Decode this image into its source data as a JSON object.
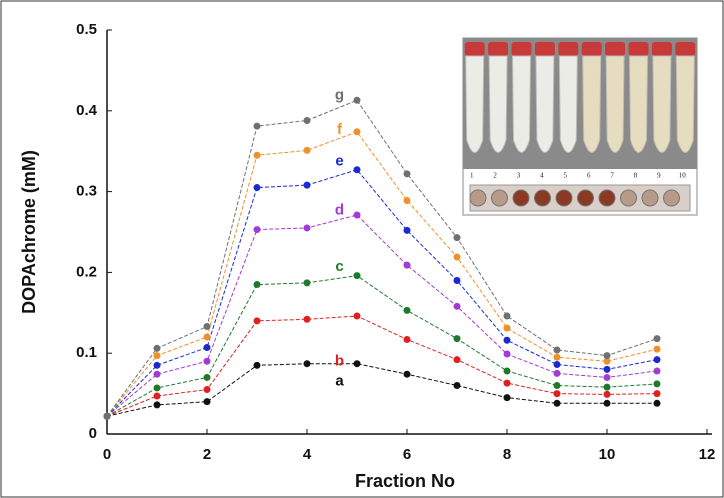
{
  "chart_data": {
    "type": "line",
    "x_label": "Fraction No",
    "y_label": "DOPAchrome (mM)",
    "x": [
      0,
      1,
      2,
      3,
      4,
      5,
      6,
      7,
      8,
      9,
      10,
      11
    ],
    "series": [
      {
        "name": "a",
        "color": "#111111",
        "values": [
          0.022,
          0.036,
          0.04,
          0.085,
          0.087,
          0.087,
          0.074,
          0.06,
          0.045,
          0.038,
          0.038,
          0.038
        ]
      },
      {
        "name": "b",
        "color": "#e02020",
        "values": [
          0.022,
          0.047,
          0.055,
          0.14,
          0.142,
          0.146,
          0.117,
          0.092,
          0.063,
          0.05,
          0.049,
          0.05
        ]
      },
      {
        "name": "c",
        "color": "#1e7a2a",
        "values": [
          0.022,
          0.057,
          0.07,
          0.185,
          0.187,
          0.196,
          0.153,
          0.118,
          0.078,
          0.06,
          0.058,
          0.062
        ]
      },
      {
        "name": "d",
        "color": "#a23ad6",
        "values": [
          0.022,
          0.074,
          0.09,
          0.253,
          0.255,
          0.271,
          0.209,
          0.158,
          0.099,
          0.075,
          0.07,
          0.078
        ]
      },
      {
        "name": "e",
        "color": "#1a2ad0",
        "values": [
          0.022,
          0.085,
          0.107,
          0.305,
          0.308,
          0.327,
          0.252,
          0.19,
          0.116,
          0.086,
          0.08,
          0.092
        ]
      },
      {
        "name": "f",
        "color": "#f0902a",
        "values": [
          0.022,
          0.097,
          0.12,
          0.345,
          0.351,
          0.374,
          0.289,
          0.219,
          0.131,
          0.095,
          0.09,
          0.105
        ]
      },
      {
        "name": "g",
        "color": "#707070",
        "values": [
          0.022,
          0.106,
          0.133,
          0.381,
          0.388,
          0.413,
          0.322,
          0.243,
          0.146,
          0.104,
          0.097,
          0.118
        ]
      }
    ],
    "xlim": [
      0,
      12
    ],
    "xticks": [
      0,
      2,
      4,
      6,
      8,
      10,
      12
    ],
    "ylim": [
      0,
      0.5
    ],
    "yticks": [
      0,
      0.1,
      0.2,
      0.3,
      0.4,
      0.5
    ],
    "inset_labels": [
      "1",
      "2",
      "3",
      "4",
      "5",
      "6",
      "7",
      "8",
      "9",
      "10"
    ]
  }
}
